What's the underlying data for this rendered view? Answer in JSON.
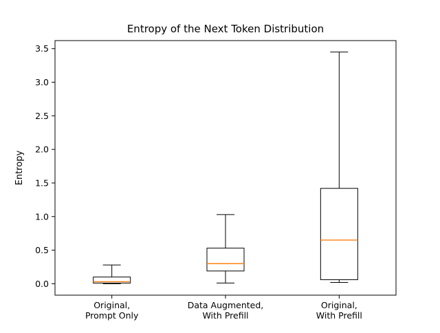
{
  "chart_data": {
    "type": "boxplot",
    "title": "Entropy of the Next Token Distribution",
    "ylabel": "Entropy",
    "xlabel": "",
    "grid": false,
    "legend": null,
    "ylim": [
      -0.17,
      3.62
    ],
    "yticks": [
      "0.0",
      "0.5",
      "1.0",
      "1.5",
      "2.0",
      "2.5",
      "3.0",
      "3.5"
    ],
    "ytick_values": [
      0.0,
      0.5,
      1.0,
      1.5,
      2.0,
      2.5,
      3.0,
      3.5
    ],
    "categories": [
      [
        "Original,",
        "Prompt Only"
      ],
      [
        "Data Augmented,",
        "With Prefill"
      ],
      [
        "Original,",
        "With Prefill"
      ]
    ],
    "boxes": [
      {
        "whisker_low": 0.0,
        "q1": 0.01,
        "median": 0.03,
        "q3": 0.1,
        "whisker_high": 0.28
      },
      {
        "whisker_low": 0.01,
        "q1": 0.19,
        "median": 0.3,
        "q3": 0.53,
        "whisker_high": 1.03
      },
      {
        "whisker_low": 0.02,
        "q1": 0.06,
        "median": 0.65,
        "q3": 1.42,
        "whisker_high": 3.45
      }
    ],
    "colors": {
      "box_stroke": "#000000",
      "median_line": "#ff7f0e",
      "axis_stroke": "#000000",
      "background": "#ffffff"
    }
  }
}
